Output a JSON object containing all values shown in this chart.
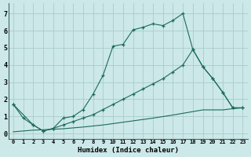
{
  "xlabel": "Humidex (Indice chaleur)",
  "bg_color": "#cce8e8",
  "grid_color": "#aacccc",
  "line_color": "#1a6b5a",
  "xlim": [
    -0.5,
    23.5
  ],
  "ylim": [
    -0.3,
    7.6
  ],
  "xticks": [
    0,
    1,
    2,
    3,
    4,
    5,
    6,
    7,
    8,
    9,
    10,
    11,
    12,
    13,
    14,
    15,
    16,
    17,
    18,
    19,
    20,
    21,
    22,
    23
  ],
  "yticks": [
    0,
    1,
    2,
    3,
    4,
    5,
    6,
    7
  ],
  "series1_x": [
    0,
    1,
    2,
    3,
    4,
    5,
    6,
    7,
    8,
    9,
    10,
    11,
    12,
    13,
    14,
    15,
    16,
    17,
    18,
    19,
    20,
    21,
    22,
    23
  ],
  "series1_y": [
    1.7,
    0.9,
    0.5,
    0.15,
    0.3,
    0.9,
    1.0,
    1.4,
    2.3,
    3.4,
    5.1,
    5.2,
    6.05,
    6.2,
    6.4,
    6.3,
    6.6,
    7.0,
    4.9,
    3.9,
    3.2,
    2.4,
    1.5,
    1.5
  ],
  "series2_x": [
    0,
    2,
    3,
    4,
    5,
    6,
    7,
    8,
    9,
    10,
    11,
    12,
    13,
    14,
    15,
    16,
    17,
    18,
    19,
    20,
    21,
    22,
    23
  ],
  "series2_y": [
    1.7,
    0.5,
    0.15,
    0.3,
    0.5,
    0.7,
    0.9,
    1.1,
    1.4,
    1.7,
    2.0,
    2.3,
    2.6,
    2.9,
    3.2,
    3.6,
    4.0,
    4.9,
    3.9,
    3.2,
    2.4,
    1.5,
    1.5
  ],
  "series3_x": [
    0,
    1,
    2,
    3,
    4,
    5,
    6,
    7,
    8,
    9,
    10,
    11,
    12,
    13,
    14,
    15,
    16,
    17,
    18,
    19,
    20,
    21,
    22,
    23
  ],
  "series3_y": [
    0.1,
    0.15,
    0.2,
    0.22,
    0.25,
    0.28,
    0.33,
    0.38,
    0.44,
    0.5,
    0.58,
    0.66,
    0.74,
    0.82,
    0.9,
    0.99,
    1.08,
    1.18,
    1.28,
    1.38,
    1.38,
    1.38,
    1.45,
    1.5
  ]
}
